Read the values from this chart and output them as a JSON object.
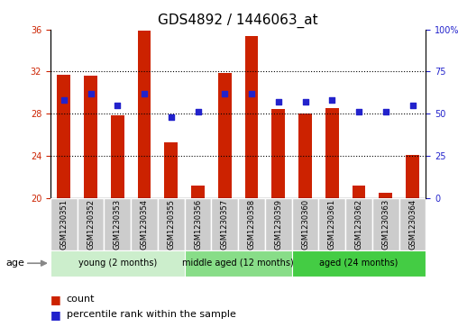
{
  "title": "GDS4892 / 1446063_at",
  "samples": [
    "GSM1230351",
    "GSM1230352",
    "GSM1230353",
    "GSM1230354",
    "GSM1230355",
    "GSM1230356",
    "GSM1230357",
    "GSM1230358",
    "GSM1230359",
    "GSM1230360",
    "GSM1230361",
    "GSM1230362",
    "GSM1230363",
    "GSM1230364"
  ],
  "count_values": [
    31.7,
    31.6,
    27.8,
    35.9,
    25.3,
    21.2,
    31.9,
    35.4,
    28.4,
    28.0,
    28.5,
    21.2,
    20.5,
    24.1
  ],
  "percentile_values": [
    58,
    62,
    55,
    62,
    48,
    51,
    62,
    62,
    57,
    57,
    58,
    51,
    51,
    55
  ],
  "ylim_left": [
    20,
    36
  ],
  "ylim_right": [
    0,
    100
  ],
  "yticks_left": [
    20,
    24,
    28,
    32,
    36
  ],
  "yticks_right": [
    0,
    25,
    50,
    75,
    100
  ],
  "ytick_labels_right": [
    "0",
    "25",
    "50",
    "75",
    "100%"
  ],
  "bar_color": "#cc2200",
  "dot_color": "#2222cc",
  "bar_width": 0.5,
  "groups": [
    {
      "label": "young (2 months)",
      "start": 0,
      "end": 4,
      "color": "#cceecc"
    },
    {
      "label": "middle aged (12 months)",
      "start": 5,
      "end": 8,
      "color": "#88dd88"
    },
    {
      "label": "aged (24 months)",
      "start": 9,
      "end": 13,
      "color": "#44cc44"
    }
  ],
  "age_label": "age",
  "legend_count_label": "count",
  "legend_percentile_label": "percentile rank within the sample",
  "left_tick_color": "#cc2200",
  "right_tick_color": "#2222cc",
  "title_fontsize": 11,
  "tick_fontsize": 7,
  "sample_label_fontsize": 6,
  "group_label_fontsize": 7,
  "xtick_bg_color": "#cccccc",
  "xtick_border_color": "#ffffff"
}
